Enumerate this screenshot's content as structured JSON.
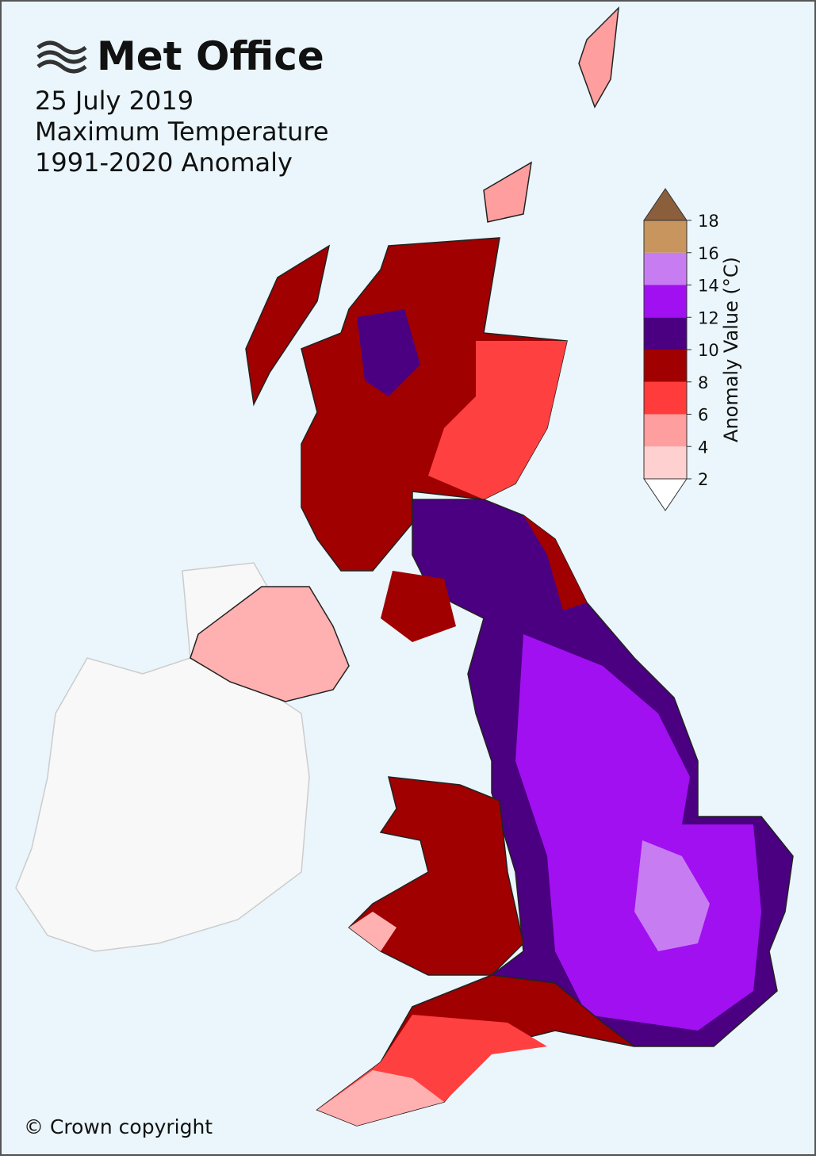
{
  "header": {
    "brand": "Met Office",
    "date": "25 July 2019",
    "title": "Maximum Temperature",
    "subtitle": "1991-2020 Anomaly"
  },
  "colorbar": {
    "label": "Anomaly Value (°C)",
    "ticks": [
      2,
      4,
      6,
      8,
      10,
      12,
      14,
      16,
      18
    ],
    "colors": [
      "#ffd0d0",
      "#ff9e9e",
      "#ff3b3b",
      "#a00000",
      "#4a0080",
      "#a010f0",
      "#c87cf2",
      "#c8955f"
    ],
    "over_color": "#8b5e3c",
    "under_color": "#ffffff"
  },
  "footer": {
    "copyright": "© Crown copyright"
  }
}
